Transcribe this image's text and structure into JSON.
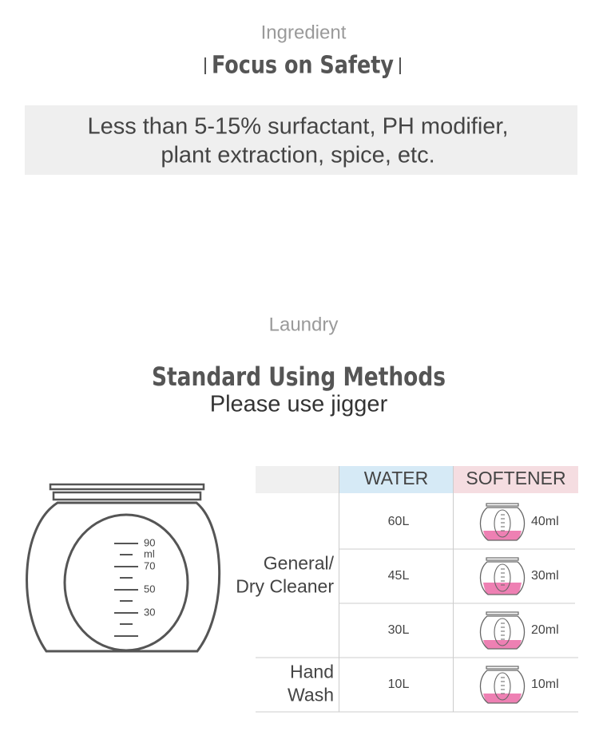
{
  "ingredient": {
    "kicker": "Ingredient",
    "title": "Focus on Safety",
    "text_lines": [
      "Less than 5-15% surfactant, PH modifier,",
      "plant extraction, spice, etc."
    ]
  },
  "laundry": {
    "kicker": "Laundry",
    "title": "Standard Using Methods",
    "subtitle": "Please use jigger",
    "jigger_labels": [
      "90",
      "ml",
      "70",
      "50",
      "30"
    ],
    "table": {
      "header": [
        "WATER",
        "SOFTENER"
      ],
      "groups": [
        {
          "label": [
            "General/",
            "Dry Cleaner"
          ],
          "rows": [
            [
              "60L",
              "40ml"
            ],
            [
              "45L",
              "30ml"
            ],
            [
              "30L",
              "20ml"
            ]
          ]
        },
        {
          "label": [
            "Hand",
            "Wash"
          ],
          "rows": [
            [
              "10L",
              "10ml"
            ]
          ]
        }
      ]
    }
  }
}
